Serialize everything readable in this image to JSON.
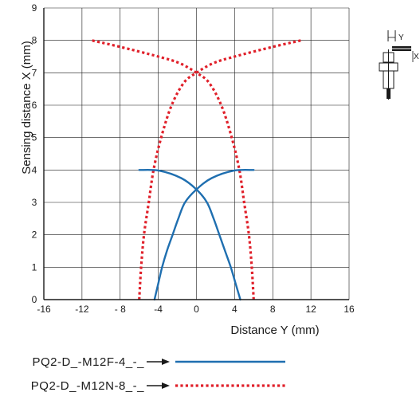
{
  "chart_data": {
    "type": "line",
    "xlabel": "Distance Y (mm)",
    "ylabel": "Sensing distance X (mm)",
    "xlim": [
      -16,
      16
    ],
    "ylim": [
      0,
      9
    ],
    "x_ticks": [
      -16,
      -12,
      -8,
      -4,
      0,
      4,
      8,
      12,
      16
    ],
    "x_tick_labels": [
      "-16",
      "-12",
      "- 8",
      "-4",
      "0",
      "4",
      "8",
      "12",
      "16"
    ],
    "y_ticks": [
      0,
      1,
      2,
      3,
      4,
      5,
      6,
      7,
      8,
      9
    ],
    "y_tick_labels": [
      "0",
      "1",
      "2",
      "3",
      "4",
      "5",
      "6",
      "7",
      "8",
      "9"
    ],
    "grid": true,
    "legend_position": "bottom",
    "series": [
      {
        "name": "PQ2-D_-M12F-4_-_",
        "style": "solid",
        "color": "#1f6fb0",
        "curves": [
          [
            [
              4.6,
              0
            ],
            [
              4.1,
              0.5
            ],
            [
              3.6,
              1.0
            ],
            [
              3.0,
              1.5
            ],
            [
              2.4,
              2.0
            ],
            [
              1.8,
              2.5
            ],
            [
              1.1,
              3.0
            ],
            [
              0.0,
              3.4
            ],
            [
              -1.6,
              3.75
            ],
            [
              -3.9,
              3.98
            ],
            [
              -6.0,
              4.0
            ]
          ],
          [
            [
              -4.4,
              0
            ],
            [
              -4.0,
              0.5
            ],
            [
              -3.6,
              1.0
            ],
            [
              -3.1,
              1.5
            ],
            [
              -2.5,
              2.0
            ],
            [
              -1.9,
              2.5
            ],
            [
              -1.2,
              3.0
            ],
            [
              0.0,
              3.4
            ],
            [
              1.6,
              3.75
            ],
            [
              3.9,
              3.98
            ],
            [
              6.0,
              4.0
            ]
          ]
        ]
      },
      {
        "name": "PQ2-D_-M12N-8_-_",
        "style": "dotted",
        "color": "#e0202a",
        "curves": [
          [
            [
              -6.0,
              0
            ],
            [
              -5.8,
              1.0
            ],
            [
              -5.5,
              2.0
            ],
            [
              -5.0,
              3.0
            ],
            [
              -4.5,
              4.0
            ],
            [
              -3.7,
              5.0
            ],
            [
              -2.6,
              6.0
            ],
            [
              -1.3,
              6.7
            ],
            [
              0.0,
              7.0
            ],
            [
              1.8,
              7.3
            ],
            [
              4.0,
              7.5
            ],
            [
              8.0,
              7.8
            ],
            [
              11.0,
              8.0
            ]
          ],
          [
            [
              6.0,
              0
            ],
            [
              5.8,
              1.0
            ],
            [
              5.5,
              2.0
            ],
            [
              5.0,
              3.0
            ],
            [
              4.5,
              4.0
            ],
            [
              3.7,
              5.0
            ],
            [
              2.6,
              6.0
            ],
            [
              1.3,
              6.7
            ],
            [
              0.0,
              7.0
            ],
            [
              -1.8,
              7.3
            ],
            [
              -4.0,
              7.5
            ],
            [
              -8.0,
              7.8
            ],
            [
              -11.0,
              8.0
            ]
          ]
        ]
      }
    ]
  },
  "diagram": {
    "y_label": "Y",
    "x_label": "X"
  }
}
